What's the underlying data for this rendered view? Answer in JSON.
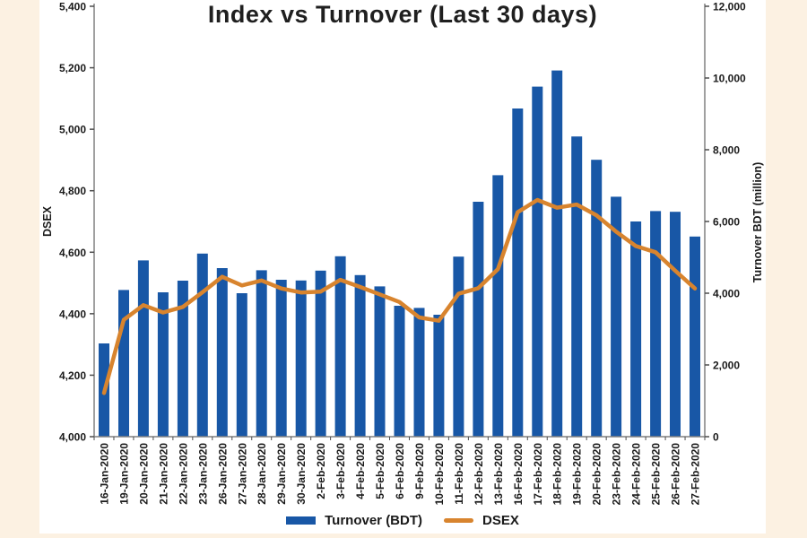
{
  "chart_data": {
    "type": "bar+line combo",
    "title": "Index vs Turnover (Last 30 days)",
    "grid": false,
    "legend_position": "bottom",
    "background_color": "#FCF1E2",
    "plot_background": "#FFFFFF",
    "categories": [
      "16-Jan-2020",
      "19-Jan-2020",
      "20-Jan-2020",
      "21-Jan-2020",
      "22-Jan-2020",
      "23-Jan-2020",
      "26-Jan-2020",
      "27-Jan-2020",
      "28-Jan-2020",
      "29-Jan-2020",
      "30-Jan-2020",
      "2-Feb-2020",
      "3-Feb-2020",
      "4-Feb-2020",
      "5-Feb-2020",
      "6-Feb-2020",
      "9-Feb-2020",
      "10-Feb-2020",
      "11-Feb-2020",
      "12-Feb-2020",
      "13-Feb-2020",
      "16-Feb-2020",
      "17-Feb-2020",
      "18-Feb-2020",
      "19-Feb-2020",
      "20-Feb-2020",
      "23-Feb-2020",
      "24-Feb-2020",
      "25-Feb-2020",
      "26-Feb-2020",
      "27-Feb-2020"
    ],
    "series": [
      {
        "name": "Turnover (BDT)",
        "type": "bar",
        "axis": "right",
        "color": "#1857A6",
        "values": [
          2600,
          4090,
          4915,
          4025,
          4350,
          5105,
          4700,
          4000,
          4640,
          4375,
          4355,
          4630,
          5030,
          4505,
          4190,
          3650,
          3590,
          3400,
          5020,
          6550,
          7290,
          9150,
          9760,
          10210,
          8370,
          7720,
          6690,
          6000,
          6290,
          6270,
          5580
        ]
      },
      {
        "name": "DSEX",
        "type": "line",
        "axis": "left",
        "color": "#D8842E",
        "values": [
          4142,
          4380,
          4428,
          4404,
          4422,
          4470,
          4520,
          4492,
          4508,
          4482,
          4469,
          4472,
          4510,
          4487,
          4463,
          4438,
          4388,
          4377,
          4465,
          4483,
          4545,
          4730,
          4770,
          4745,
          4755,
          4720,
          4667,
          4620,
          4600,
          4540,
          4482
        ]
      }
    ],
    "left_axis": {
      "title": "DSEX",
      "min": 4000,
      "max": 5400,
      "step": 200,
      "tick_labels": [
        "4,000",
        "4,200",
        "4,400",
        "4,600",
        "4,800",
        "5,000",
        "5,200",
        "5,400"
      ]
    },
    "right_axis": {
      "title": "Turnover BDT (million)",
      "min": 0,
      "max": 12000,
      "step": 2000,
      "tick_labels": [
        "0",
        "2,000",
        "4,000",
        "6,000",
        "8,000",
        "10,000",
        "12,000"
      ]
    },
    "colors": {
      "axis_line": "#808080",
      "tick_mark": "#4D4D4D",
      "text": "#1A1A1A"
    }
  }
}
